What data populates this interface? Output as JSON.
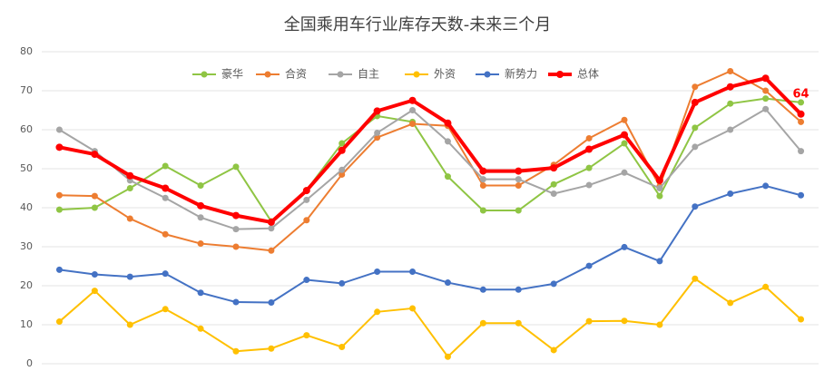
{
  "chart_data": {
    "type": "line",
    "title": "全国乘用车行业库存天数-未来三个月",
    "categories": [
      null,
      null,
      null,
      null,
      null,
      null,
      null,
      null,
      null,
      null,
      null,
      null,
      null,
      null,
      null,
      null,
      null,
      null,
      null,
      null,
      null,
      null
    ],
    "ylim": [
      0,
      80
    ],
    "yticks": [
      0,
      10,
      20,
      30,
      40,
      50,
      60,
      70,
      80
    ],
    "grid": true,
    "legend": "top",
    "series": [
      {
        "name": "豪华",
        "color": "#8fc544",
        "values": [
          39.5,
          40,
          45,
          50.7,
          45.7,
          50.5,
          36.5,
          44.5,
          56.5,
          63.5,
          62,
          48,
          39.3,
          39.3,
          46,
          50.2,
          56.5,
          43,
          60.5,
          66.7,
          68,
          67
        ]
      },
      {
        "name": "合资",
        "color": "#ed7d31",
        "values": [
          43.2,
          43,
          37.2,
          33.2,
          30.8,
          30,
          29,
          36.8,
          48.5,
          58,
          61.5,
          61,
          45.7,
          45.7,
          51,
          57.8,
          62.5,
          45.5,
          71,
          75,
          70,
          62
        ]
      },
      {
        "name": "自主",
        "color": "#a5a5a5",
        "values": [
          60,
          54.5,
          47,
          42.5,
          37.5,
          34.5,
          34.7,
          42,
          49.7,
          59.2,
          65,
          57,
          47.3,
          47.3,
          43.6,
          45.8,
          49,
          45,
          55.6,
          60,
          65.3,
          54.5
        ]
      },
      {
        "name": "外资",
        "color": "#ffc000",
        "values": [
          10.8,
          18.7,
          10,
          14,
          9,
          3.2,
          3.9,
          7.3,
          4.3,
          13.3,
          14.2,
          1.8,
          10.4,
          10.4,
          3.5,
          10.9,
          11,
          10,
          21.8,
          15.6,
          19.7,
          11.4
        ]
      },
      {
        "name": "新势力",
        "color": "#4472c4",
        "values": [
          24.1,
          22.9,
          22.3,
          23.1,
          18.2,
          15.8,
          15.7,
          21.5,
          20.6,
          23.6,
          23.6,
          20.8,
          19,
          19,
          20.5,
          25.1,
          29.9,
          26.3,
          40.3,
          43.6,
          45.6,
          43.2
        ]
      },
      {
        "name": "总体",
        "color": "#ff0000",
        "values": [
          55.5,
          53.7,
          48.2,
          45,
          40.5,
          38,
          36.3,
          44.4,
          54.7,
          64.8,
          67.5,
          61.7,
          49.4,
          49.4,
          50.2,
          55,
          58.7,
          47,
          67,
          71,
          73.2,
          64
        ],
        "value_labels": [
          null,
          null,
          null,
          null,
          null,
          null,
          null,
          null,
          null,
          null,
          null,
          null,
          null,
          null,
          null,
          null,
          null,
          null,
          null,
          null,
          null,
          "64"
        ]
      }
    ]
  }
}
